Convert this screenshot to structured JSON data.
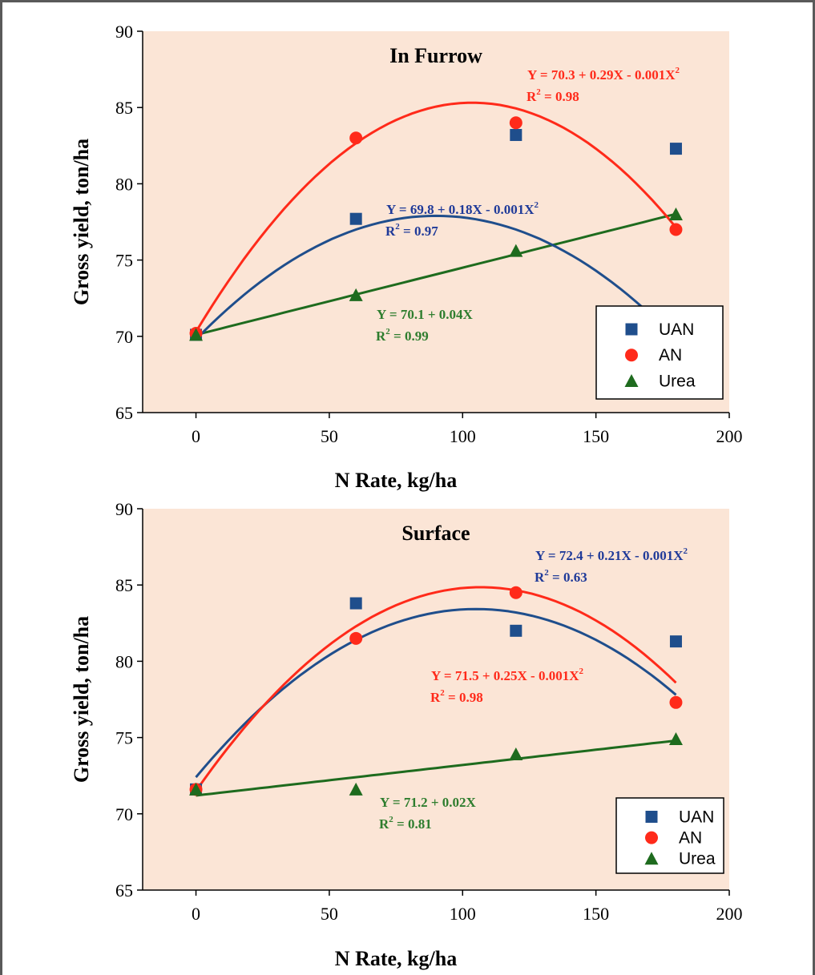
{
  "colors": {
    "plot_bg": "#FBE5D6",
    "UAN": "#1F4E8C",
    "AN": "#FF2A1A",
    "Urea": "#1E6B1E",
    "UAN_eq": "#1F3A99",
    "AN_eq": "#FF2A1A",
    "Urea_eq": "#2E7D2E"
  },
  "chart_data": [
    {
      "type": "scatter",
      "title": "In Furrow",
      "xlabel": "N Rate, kg/ha",
      "ylabel": "Gross yield, ton/ha",
      "xlim": [
        -20,
        200
      ],
      "ylim": [
        65,
        90
      ],
      "xticks": [
        "0",
        "50",
        "100",
        "150",
        "200"
      ],
      "yticks": [
        "65",
        "70",
        "75",
        "80",
        "85",
        "90"
      ],
      "xtick_values": [
        0,
        50,
        100,
        150,
        200
      ],
      "ytick_values": [
        65,
        70,
        75,
        80,
        85,
        90
      ],
      "legend_position": "bottom-right",
      "series": [
        {
          "name": "UAN",
          "marker": "square",
          "x": [
            0,
            60,
            120,
            180
          ],
          "y": [
            70.1,
            77.7,
            83.2,
            82.3
          ],
          "fit": [
            69.8,
            0.18,
            -0.001
          ]
        },
        {
          "name": "AN",
          "marker": "circle",
          "x": [
            0,
            60,
            120,
            180
          ],
          "y": [
            70.2,
            83.0,
            84.0,
            77.0
          ],
          "fit": [
            70.3,
            0.29,
            -0.0014
          ]
        },
        {
          "name": "Urea",
          "marker": "triangle",
          "x": [
            0,
            60,
            120,
            180
          ],
          "y": [
            70.1,
            72.7,
            75.6,
            78.0
          ],
          "fit": [
            70.1,
            0.044,
            0
          ]
        }
      ],
      "annotations": [
        {
          "series": "AN",
          "eq": "Y = 70.3 + 0.29X - 0.001X",
          "r2": "R",
          "r2_val": " = 0.98"
        },
        {
          "series": "UAN",
          "eq": "Y = 69.8 + 0.18X - 0.001X",
          "r2": "R",
          "r2_val": " = 0.97"
        },
        {
          "series": "Urea",
          "eq": "Y = 70.1 + 0.04X",
          "r2": "R",
          "r2_val": " = 0.99"
        }
      ]
    },
    {
      "type": "scatter",
      "title": "Surface",
      "xlabel": "N Rate, kg/ha",
      "ylabel": "Gross yield, ton/ha",
      "xlim": [
        -20,
        200
      ],
      "ylim": [
        65,
        90
      ],
      "xticks": [
        "0",
        "50",
        "100",
        "150",
        "200"
      ],
      "yticks": [
        "65",
        "70",
        "75",
        "80",
        "85",
        "90"
      ],
      "xtick_values": [
        0,
        50,
        100,
        150,
        200
      ],
      "ytick_values": [
        65,
        70,
        75,
        80,
        85,
        90
      ],
      "legend_position": "bottom-right",
      "series": [
        {
          "name": "UAN",
          "marker": "square",
          "x": [
            0,
            60,
            120,
            180
          ],
          "y": [
            71.6,
            83.8,
            82.0,
            81.3
          ],
          "fit": [
            72.4,
            0.21,
            -0.001
          ]
        },
        {
          "name": "AN",
          "marker": "circle",
          "x": [
            0,
            60,
            120,
            180
          ],
          "y": [
            71.6,
            81.5,
            84.5,
            77.3
          ],
          "fit": [
            71.5,
            0.25,
            -0.00117
          ]
        },
        {
          "name": "Urea",
          "marker": "triangle",
          "x": [
            0,
            60,
            120,
            180
          ],
          "y": [
            71.6,
            71.6,
            73.9,
            74.9
          ],
          "fit": [
            71.2,
            0.02,
            0
          ]
        }
      ],
      "annotations": [
        {
          "series": "UAN",
          "eq": "Y = 72.4 + 0.21X - 0.001X",
          "r2": "R",
          "r2_val": " = 0.63"
        },
        {
          "series": "AN",
          "eq": "Y = 71.5 + 0.25X - 0.001X",
          "r2": "R",
          "r2_val": " = 0.98"
        },
        {
          "series": "Urea",
          "eq": "Y = 71.2 + 0.02X",
          "r2": "R",
          "r2_val": " = 0.81"
        }
      ]
    }
  ]
}
